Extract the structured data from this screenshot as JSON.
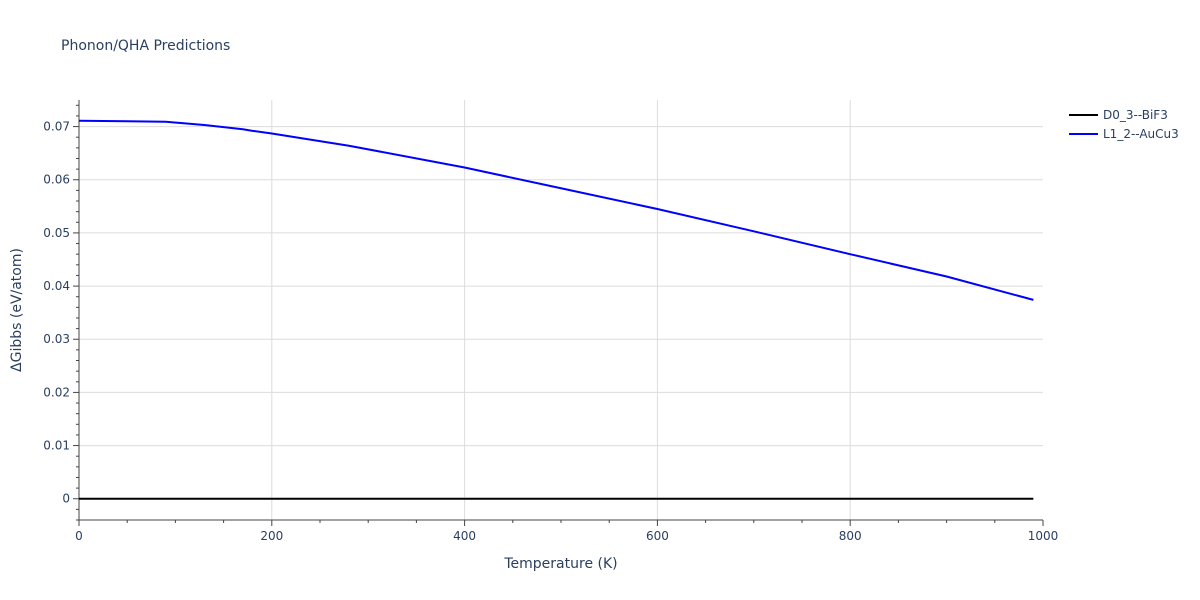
{
  "chart_data": {
    "type": "line",
    "title": "Phonon/QHA Predictions",
    "xlabel": "Temperature (K)",
    "ylabel": "ΔGibbs (eV/atom)",
    "xlim": [
      0,
      1000
    ],
    "ylim": [
      -0.004,
      0.075
    ],
    "x_ticks": [
      0,
      200,
      400,
      600,
      800,
      1000
    ],
    "x_tick_labels": [
      "0",
      "200",
      "400",
      "600",
      "800",
      "1000"
    ],
    "y_ticks": [
      0,
      0.01,
      0.02,
      0.03,
      0.04,
      0.05,
      0.06,
      0.07
    ],
    "y_tick_labels": [
      "0",
      "0.01",
      "0.02",
      "0.03",
      "0.04",
      "0.05",
      "0.06",
      "0.07"
    ],
    "grid": true,
    "legend_position": "top-right",
    "series": [
      {
        "name": "D0_3--BiF3",
        "color": "#000000",
        "x": [
          0,
          990
        ],
        "y": [
          0,
          0
        ]
      },
      {
        "name": "L1_2--AuCu3",
        "color": "#0000ff",
        "x": [
          0,
          50,
          90,
          130,
          170,
          180,
          200,
          280,
          400,
          500,
          600,
          700,
          800,
          900,
          990
        ],
        "y": [
          0.0711,
          0.071,
          0.0709,
          0.0703,
          0.0695,
          0.0692,
          0.0687,
          0.0664,
          0.0623,
          0.0584,
          0.0545,
          0.0503,
          0.046,
          0.0418,
          0.0374
        ]
      }
    ]
  }
}
